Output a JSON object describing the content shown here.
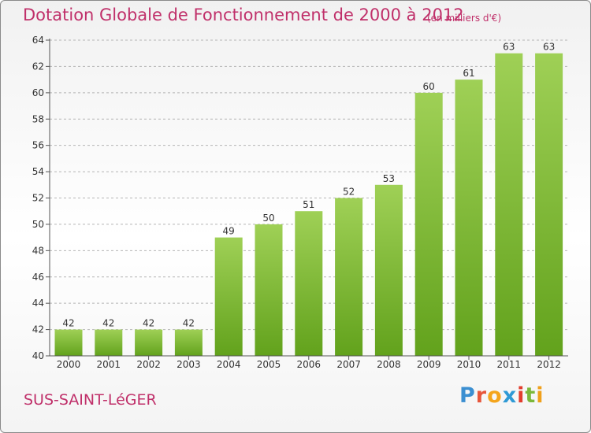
{
  "header": {
    "title": "Dotation Globale de Fonctionnement de 2000 à 2012",
    "subtitle": "(en milliers d'€)"
  },
  "footer": {
    "place": "SUS-SAINT-LéGER",
    "logo": [
      "P",
      "r",
      "o",
      "x",
      "i",
      "t",
      "i"
    ]
  },
  "colors": {
    "title": "#c0306a",
    "bar_top": "#9fd056",
    "bar_bottom": "#62a21c",
    "grid": "#b5b5b5",
    "axis": "#555555"
  },
  "chart_data": {
    "type": "bar",
    "title": "Dotation Globale de Fonctionnement de 2000 à 2012",
    "subtitle": "(en milliers d'€)",
    "categories": [
      "2000",
      "2001",
      "2002",
      "2003",
      "2004",
      "2005",
      "2006",
      "2007",
      "2008",
      "2009",
      "2010",
      "2011",
      "2012"
    ],
    "values": [
      42,
      42,
      42,
      42,
      49,
      50,
      51,
      52,
      53,
      60,
      61,
      63,
      63
    ],
    "ylim": [
      40,
      64
    ],
    "yticks": [
      40,
      42,
      44,
      46,
      48,
      50,
      52,
      54,
      56,
      58,
      60,
      62,
      64
    ],
    "grid": true,
    "data_labels": true
  }
}
